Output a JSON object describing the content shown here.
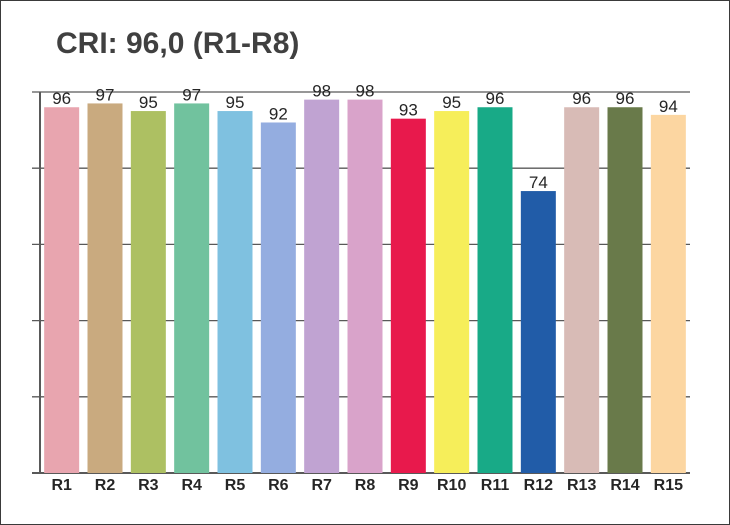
{
  "chart_data": {
    "type": "bar",
    "title": "CRI: 96,0 (R1-R8)",
    "categories": [
      "R1",
      "R2",
      "R3",
      "R4",
      "R5",
      "R6",
      "R7",
      "R8",
      "R9",
      "R10",
      "R11",
      "R12",
      "R13",
      "R14",
      "R15"
    ],
    "values": [
      96,
      97,
      95,
      97,
      95,
      92,
      98,
      98,
      93,
      95,
      96,
      74,
      96,
      96,
      94
    ],
    "colors": [
      "#E8A5AF",
      "#C9AA7F",
      "#ADC062",
      "#71C29E",
      "#7FC1E0",
      "#94ADE0",
      "#C0A3D2",
      "#D9A3CA",
      "#E8194C",
      "#F6EE5A",
      "#18AA87",
      "#215CA8",
      "#D8BBB6",
      "#697A4A",
      "#FCD6A1"
    ],
    "xlabel": "",
    "ylabel": "",
    "ylim": [
      0,
      100
    ],
    "grid": true,
    "legend": "none"
  }
}
